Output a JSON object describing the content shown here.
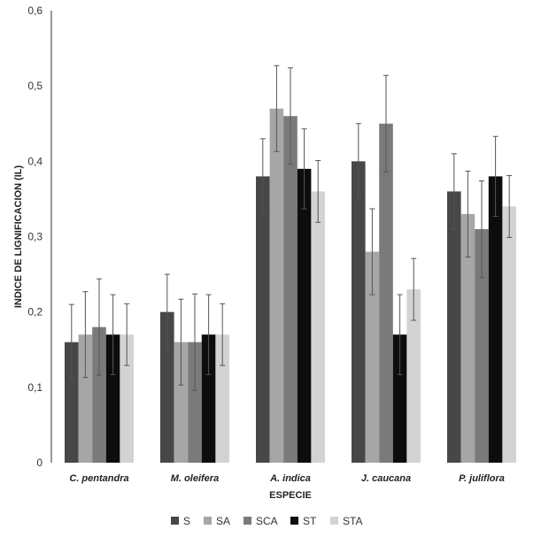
{
  "chart_data": {
    "type": "bar",
    "xlabel": "ESPECIE",
    "ylabel": "INDICE DE LIGNIFICACION (IL)",
    "ylim": [
      0,
      0.6
    ],
    "yticks": [
      "0",
      "0,1",
      "0,2",
      "0,3",
      "0,4",
      "0,5",
      "0,6"
    ],
    "ytick_values": [
      0,
      0.1,
      0.2,
      0.3,
      0.4,
      0.5,
      0.6
    ],
    "categories": [
      "C. pentandra",
      "M. oleifera",
      "A. indica",
      "J. caucana",
      "P. juliflora"
    ],
    "series": [
      {
        "name": "S",
        "color": "#474747",
        "values": [
          0.16,
          0.2,
          0.38,
          0.4,
          0.36
        ],
        "errors": [
          0.05,
          0.05,
          0.05,
          0.05,
          0.05
        ]
      },
      {
        "name": "SA",
        "color": "#a6a6a6",
        "values": [
          0.17,
          0.16,
          0.47,
          0.28,
          0.33
        ],
        "errors": [
          0.057,
          0.057,
          0.057,
          0.057,
          0.057
        ]
      },
      {
        "name": "SCA",
        "color": "#7a7a7a",
        "values": [
          0.18,
          0.16,
          0.46,
          0.45,
          0.31
        ],
        "errors": [
          0.064,
          0.064,
          0.064,
          0.064,
          0.064
        ]
      },
      {
        "name": "ST",
        "color": "#0d0d0d",
        "values": [
          0.17,
          0.17,
          0.39,
          0.17,
          0.38
        ],
        "errors": [
          0.053,
          0.053,
          0.053,
          0.053,
          0.053
        ]
      },
      {
        "name": "STA",
        "color": "#d3d3d3",
        "values": [
          0.17,
          0.17,
          0.36,
          0.23,
          0.34
        ],
        "errors": [
          0.041,
          0.041,
          0.041,
          0.041,
          0.041
        ]
      }
    ],
    "grid": false,
    "legend_position": "bottom"
  }
}
